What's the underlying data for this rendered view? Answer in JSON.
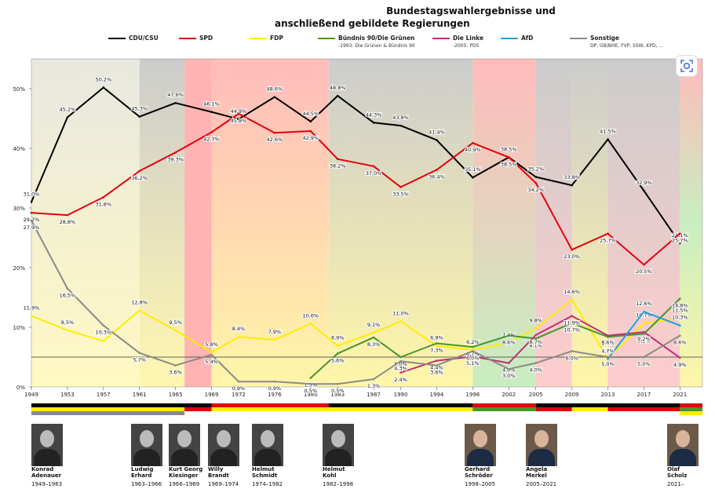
{
  "title_line1": "Bundestagswahlergebnisse und",
  "title_line2": "anschließend gebildete Regierungen",
  "legend": [
    {
      "key": "cdu",
      "name": "CDU/CSU",
      "note": "",
      "color": "#000000"
    },
    {
      "key": "spd",
      "name": "SPD",
      "note": "",
      "color": "#e3000f"
    },
    {
      "key": "fdp",
      "name": "FDP",
      "note": "",
      "color": "#ffed00"
    },
    {
      "key": "gruene",
      "name": "Bündnis 90/Die Grünen",
      "note": "-1993: Die Grünen & Bündnis 90",
      "color": "#46962b"
    },
    {
      "key": "linke",
      "name": "Die Linke",
      "note": "-2005: PDS",
      "color": "#be3075"
    },
    {
      "key": "afd",
      "name": "AfD",
      "note": "",
      "color": "#1e9fe0"
    },
    {
      "key": "sonstige",
      "name": "Sonstige",
      "note": "DP, GB/BHE, FVP, SSW, KPD, ...",
      "color": "#8a8a8a"
    }
  ],
  "chart_data": {
    "type": "line",
    "x": [
      1949,
      1953,
      1957,
      1961,
      1965,
      1969,
      1972,
      1976,
      1980,
      1983,
      1987,
      1990,
      1994,
      1998,
      2002,
      2005,
      2009,
      2013,
      2017,
      2021
    ],
    "x_ticks": [
      "1949",
      "1953",
      "1957",
      "1961",
      "1965",
      "1969",
      "1972",
      "1976",
      "1980",
      "1983",
      "1987",
      "1990",
      "1994",
      "1998",
      "2002",
      "2005",
      "2009",
      "2013",
      "2017",
      "2021"
    ],
    "y_ticks": [
      "0%",
      "10%",
      "20%",
      "30%",
      "40%",
      "50%"
    ],
    "ylim": [
      0,
      55
    ],
    "threshold": 5,
    "series": [
      {
        "key": "cdu",
        "name": "CDU/CSU",
        "color": "#000000",
        "x": [
          1949,
          1953,
          1957,
          1961,
          1965,
          1969,
          1972,
          1976,
          1980,
          1983,
          1987,
          1990,
          1994,
          1998,
          2002,
          2005,
          2009,
          2013,
          2017,
          2021
        ],
        "values": [
          31.0,
          45.2,
          50.2,
          45.3,
          47.6,
          46.1,
          44.9,
          48.6,
          44.5,
          48.8,
          44.3,
          43.8,
          41.4,
          35.1,
          38.5,
          35.2,
          33.8,
          41.5,
          32.9,
          24.1
        ],
        "labels": [
          "31,0%",
          "45,2%",
          "50,2%",
          "45,3%",
          "47,6%",
          "46,1%",
          "44,9%",
          "48,6%",
          "44,5%",
          "48,8%",
          "44,3%",
          "43,8%",
          "41,4%",
          "35,1%",
          "38,5%",
          "35,2%",
          "33,8%",
          "41,5%",
          "32,9%",
          "24,1%"
        ]
      },
      {
        "key": "spd",
        "name": "SPD",
        "color": "#e3000f",
        "x": [
          1949,
          1953,
          1957,
          1961,
          1965,
          1969,
          1972,
          1976,
          1980,
          1983,
          1987,
          1990,
          1994,
          1998,
          2002,
          2005,
          2009,
          2013,
          2017,
          2021
        ],
        "values": [
          29.2,
          28.8,
          31.8,
          36.2,
          39.3,
          42.7,
          45.8,
          42.6,
          42.9,
          38.2,
          37.0,
          33.5,
          36.4,
          40.9,
          38.5,
          34.2,
          23.0,
          25.7,
          20.5,
          25.7
        ],
        "labels": [
          "29,2%",
          "28,8%",
          "31,8%",
          "36,2%",
          "39,3%",
          "42,7%",
          "45,8%",
          "42,6%",
          "42,9%",
          "38,2%",
          "37,0%",
          "33,5%",
          "36,4%",
          "40,9%",
          "38,5%",
          "34,2%",
          "23,0%",
          "25,7%",
          "20,5%",
          "25,7%"
        ]
      },
      {
        "key": "fdp",
        "name": "FDP",
        "color": "#ffed00",
        "x": [
          1949,
          1953,
          1957,
          1961,
          1965,
          1969,
          1972,
          1976,
          1980,
          1983,
          1987,
          1990,
          1994,
          1998,
          2002,
          2005,
          2009,
          2013,
          2017,
          2021
        ],
        "values": [
          11.9,
          9.5,
          7.7,
          12.8,
          9.5,
          5.8,
          8.4,
          7.9,
          10.6,
          6.9,
          9.1,
          11.0,
          6.9,
          6.2,
          7.4,
          9.8,
          14.6,
          4.8,
          10.7,
          11.5
        ],
        "labels": [
          "11,9%",
          "9,5%",
          "7,7%",
          "12,8%",
          "9,5%",
          "5,8%",
          "8,4%",
          "7,9%",
          "10,6%",
          "6,9%",
          "9,1%",
          "11,0%",
          "6,9%",
          "6,2%",
          "7,4%",
          "9,8%",
          "14,6%",
          "4,8%",
          "10,7%",
          "11,5%"
        ]
      },
      {
        "key": "gruene",
        "name": "Bündnis 90/Die Grünen",
        "color": "#46962b",
        "x": [
          1980,
          1983,
          1987,
          1990,
          1994,
          1998,
          2002,
          2005,
          2009,
          2013,
          2017,
          2021
        ],
        "values": [
          1.5,
          5.6,
          8.3,
          5.0,
          7.3,
          6.7,
          8.6,
          8.1,
          10.7,
          8.4,
          8.9,
          14.8
        ],
        "labels": [
          "1,5%",
          "5,6%",
          "8,3%",
          "5,0%",
          "7,3%",
          "6,7%",
          "8,6%",
          "8,1%",
          "10,7%",
          "8,4%",
          "8,9%",
          "14,8%"
        ]
      },
      {
        "key": "linke",
        "name": "Die Linke",
        "color": "#be3075",
        "x": [
          1990,
          1994,
          1998,
          2002,
          2005,
          2009,
          2013,
          2017,
          2021
        ],
        "values": [
          2.4,
          4.4,
          5.1,
          4.0,
          8.7,
          11.9,
          8.6,
          9.2,
          4.9
        ],
        "labels": [
          "2,4%",
          "4,4%",
          "5,1%",
          "4,0%",
          "8,7%",
          "11,9%",
          "8,6%",
          "9,2%",
          "4,9%"
        ]
      },
      {
        "key": "afd",
        "name": "AfD",
        "color": "#1e9fe0",
        "x": [
          2013,
          2017,
          2021
        ],
        "values": [
          4.7,
          12.6,
          10.3
        ],
        "labels": [
          "4,7%",
          "12,6%",
          "10,3%"
        ]
      },
      {
        "key": "sonstige",
        "name": "Sonstige",
        "color": "#8a8a8a",
        "x": [
          1949,
          1953,
          1957,
          1961,
          1965,
          1969,
          1972,
          1976,
          1980,
          1983,
          1987,
          1990,
          1994,
          1998,
          2002,
          2005,
          2009,
          2013,
          2017,
          2021
        ],
        "values": [
          27.9,
          16.5,
          10.3,
          5.7,
          3.6,
          5.4,
          0.9,
          0.9,
          0.5,
          0.5,
          1.3,
          4.3,
          3.6,
          6.0,
          3.0,
          4.0,
          6.0,
          5.0,
          5.0,
          8.6
        ],
        "labels": [
          "27,9%",
          "16,5%",
          "10,3%",
          "5,7%",
          "3,6%",
          "5,4%",
          "0,9%",
          "0,9%",
          "0,5%",
          "0,5%",
          "1,3%",
          "4,3%",
          "3,6%",
          "6,0%",
          "3,0%",
          "4,0%",
          "6,0%",
          "5,0%",
          "5,0%",
          "8,6%"
        ]
      }
    ],
    "coalition_periods": [
      {
        "from": 1949,
        "to": 1961,
        "colors": [
          "#e8e8e0",
          "#fff9c2"
        ]
      },
      {
        "from": 1961,
        "to": 1966,
        "colors": [
          "#cccccc",
          "#fff7b0"
        ]
      },
      {
        "from": 1966,
        "to": 1969,
        "colors": [
          "#ffb3b3"
        ]
      },
      {
        "from": 1969,
        "to": 1982,
        "colors": [
          "#ffbbbb",
          "#fff6a8"
        ]
      },
      {
        "from": 1982,
        "to": 1998,
        "colors": [
          "#cccccc",
          "#fff6a8"
        ]
      },
      {
        "from": 1998,
        "to": 2005,
        "colors": [
          "#ffbbbb",
          "#c8eec0"
        ]
      },
      {
        "from": 2005,
        "to": 2009,
        "colors": [
          "#cccccc",
          "#ffcccc"
        ]
      },
      {
        "from": 2009,
        "to": 2013,
        "colors": [
          "#cccccc",
          "#fff6a8"
        ]
      },
      {
        "from": 2013,
        "to": 2021,
        "colors": [
          "#cccccc",
          "#ffcccc"
        ]
      },
      {
        "from": 2021,
        "to": 2023.5,
        "colors": [
          "#ffbbbb",
          "#c8eec0",
          "#fff6a8"
        ]
      }
    ]
  },
  "chancellors": [
    {
      "name_line1": "Konrad",
      "name_line2": "Adenauer",
      "years": "1949–1963",
      "color": false
    },
    {
      "name_line1": "Ludwig",
      "name_line2": "Erhard",
      "years": "1963–1966",
      "color": false
    },
    {
      "name_line1": "Kurt Georg",
      "name_line2": "Kiesinger",
      "years": "1966–1969",
      "color": false
    },
    {
      "name_line1": "Willy",
      "name_line2": "Brandt",
      "years": "1969–1974",
      "color": false
    },
    {
      "name_line1": "Helmut",
      "name_line2": "Schmidt",
      "years": "1974–1982",
      "color": false
    },
    {
      "name_line1": "Helmut",
      "name_line2": "Kohl",
      "years": "1982–1998",
      "color": false
    },
    {
      "name_line1": "Gerhard",
      "name_line2": "Schröder",
      "years": "1998–2005",
      "color": true
    },
    {
      "name_line1": "Angela",
      "name_line2": "Merkel",
      "years": "2005–2021",
      "color": true
    },
    {
      "name_line1": "Olaf",
      "name_line2": "Scholz",
      "years": "2021–",
      "color": true
    }
  ]
}
